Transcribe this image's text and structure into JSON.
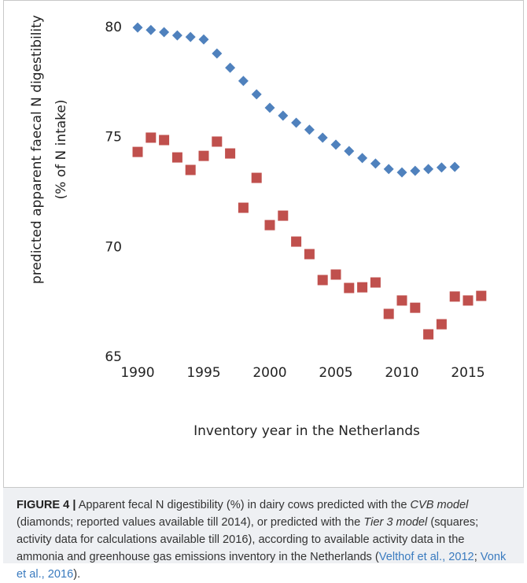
{
  "chart_data": {
    "type": "scatter",
    "ylabel": [
      "predicted apparent faecal N digestibility",
      "(% of N intake)"
    ],
    "xlabel": "Inventory year in the Netherlands",
    "x": [
      1990,
      1991,
      1992,
      1993,
      1994,
      1995,
      1996,
      1997,
      1998,
      1999,
      2000,
      2001,
      2002,
      2003,
      2004,
      2005,
      2006,
      2007,
      2008,
      2009,
      2010,
      2011,
      2012,
      2013,
      2014,
      2015,
      2016
    ],
    "series": [
      {
        "marker": "diamond",
        "color": "#4f81bd",
        "values": [
          80.0,
          79.89,
          79.79,
          79.64,
          79.57,
          79.46,
          78.82,
          78.17,
          77.57,
          76.96,
          76.35,
          75.99,
          75.67,
          75.35,
          74.99,
          74.67,
          74.38,
          74.06,
          73.81,
          73.56,
          73.41,
          73.48,
          73.56,
          73.63,
          73.66,
          null,
          null
        ]
      },
      {
        "marker": "square",
        "color": "#c0504d",
        "values": [
          74.34,
          74.99,
          74.88,
          74.09,
          73.52,
          74.16,
          74.81,
          74.27,
          71.8,
          73.16,
          71.01,
          71.44,
          70.26,
          69.69,
          68.51,
          68.76,
          68.15,
          68.18,
          68.4,
          66.97,
          67.58,
          67.25,
          66.04,
          66.5,
          67.76,
          67.58,
          67.79
        ]
      }
    ],
    "xlim": [
      1990,
      2017
    ],
    "xticks": [
      1990,
      1995,
      2000,
      2005,
      2010,
      2015
    ],
    "ylim": [
      65,
      80
    ],
    "yticks": [
      65,
      70,
      75,
      80
    ],
    "grid": false
  },
  "caption": {
    "label": "FIGURE 4 |",
    "parts": [
      "Apparent fecal N digestibility (%) in dairy cows predicted with the ",
      "CVB model",
      " (diamonds; reported values available till 2014), or predicted with the ",
      "Tier 3 model",
      " (squares; activity data for calculations available till 2016), according to available activity data in the ammonia and greenhouse gas emissions inventory in the Netherlands (",
      "Velthof et al., 2012",
      "; ",
      "Vonk et al., 2016",
      ")."
    ]
  }
}
